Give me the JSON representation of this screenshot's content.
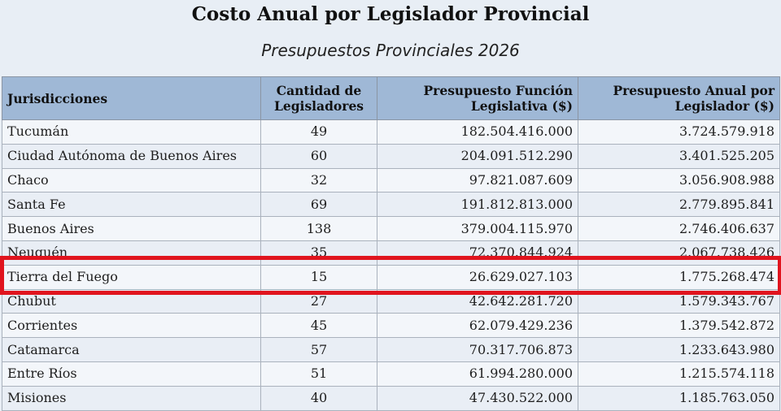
{
  "document": {
    "title": "Costo Anual por Legislador Provincial",
    "subtitle": "Presupuestos Provinciales 2026"
  },
  "table": {
    "headers": {
      "jurisdiccion": "Jurisdicciones",
      "cantidad": "Cantidad de Legisladores",
      "presupuesto": "Presupuesto Función Legislativa ($)",
      "anual": "Presupuesto Anual por Legislador ($)"
    },
    "rows": [
      {
        "jurisdiccion": "Tucumán",
        "cantidad": "49",
        "presupuesto": "182.504.416.000",
        "anual": "3.724.579.918"
      },
      {
        "jurisdiccion": "Ciudad Autónoma de Buenos Aires",
        "cantidad": "60",
        "presupuesto": "204.091.512.290",
        "anual": "3.401.525.205"
      },
      {
        "jurisdiccion": "Chaco",
        "cantidad": "32",
        "presupuesto": "97.821.087.609",
        "anual": "3.056.908.988"
      },
      {
        "jurisdiccion": "Santa Fe",
        "cantidad": "69",
        "presupuesto": "191.812.813.000",
        "anual": "2.779.895.841"
      },
      {
        "jurisdiccion": "Buenos Aires",
        "cantidad": "138",
        "presupuesto": "379.004.115.970",
        "anual": "2.746.406.637"
      },
      {
        "jurisdiccion": "Neuquén",
        "cantidad": "35",
        "presupuesto": "72.370.844.924",
        "anual": "2.067.738.426"
      },
      {
        "jurisdiccion": "Tierra del Fuego",
        "cantidad": "15",
        "presupuesto": "26.629.027.103",
        "anual": "1.775.268.474"
      },
      {
        "jurisdiccion": "Chubut",
        "cantidad": "27",
        "presupuesto": "42.642.281.720",
        "anual": "1.579.343.767"
      },
      {
        "jurisdiccion": "Corrientes",
        "cantidad": "45",
        "presupuesto": "62.079.429.236",
        "anual": "1.379.542.872"
      },
      {
        "jurisdiccion": "Catamarca",
        "cantidad": "57",
        "presupuesto": "70.317.706.873",
        "anual": "1.233.643.980"
      },
      {
        "jurisdiccion": "Entre Ríos",
        "cantidad": "51",
        "presupuesto": "61.994.280.000",
        "anual": "1.215.574.118"
      },
      {
        "jurisdiccion": "Misiones",
        "cantidad": "40",
        "presupuesto": "47.430.522.000",
        "anual": "1.185.763.050"
      }
    ]
  },
  "annotation": {
    "highlighted_row": "Tierra del Fuego",
    "highlight_color": "#e0141e"
  }
}
